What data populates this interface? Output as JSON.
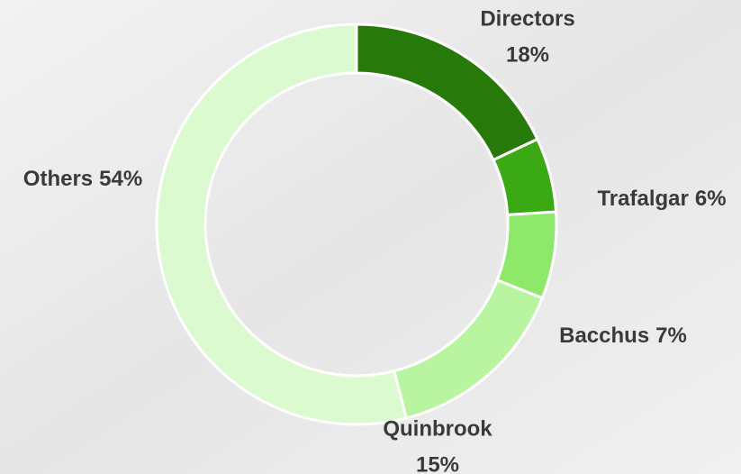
{
  "chart_data": {
    "type": "donut",
    "categories": [
      "Directors",
      "Trafalgar",
      "Bacchus",
      "Quinbrook",
      "Others"
    ],
    "values": [
      18,
      6,
      7,
      15,
      54
    ],
    "value_labels": [
      "18%",
      "6%",
      "7%",
      "15%",
      "54%"
    ],
    "colors": [
      "#277a0a",
      "#3aa914",
      "#8ee86a",
      "#b9f5a0",
      "#dcfad0"
    ]
  }
}
